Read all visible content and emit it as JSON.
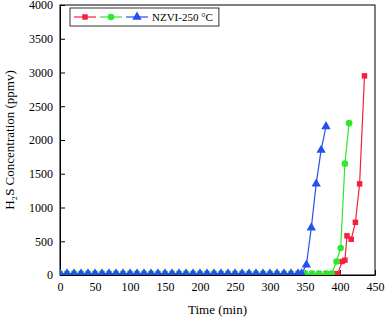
{
  "chart_data": {
    "type": "line",
    "x_label": "Time (min)",
    "y_label": "H₂S Concentration (ppmv)",
    "xlim": [
      0,
      450
    ],
    "xticks": [
      0,
      50,
      100,
      150,
      200,
      250,
      300,
      350,
      400,
      450
    ],
    "ylim": [
      0,
      4000
    ],
    "yticks": [
      0,
      500,
      1000,
      1500,
      2000,
      2500,
      3000,
      3500,
      4000
    ],
    "legend": "upper left",
    "series": [
      {
        "color": "#f5213b",
        "marker": "square",
        "line_style": "solid",
        "x": [
          0,
          10,
          20,
          30,
          40,
          50,
          60,
          70,
          80,
          90,
          100,
          110,
          120,
          130,
          140,
          150,
          160,
          170,
          180,
          190,
          200,
          210,
          220,
          230,
          240,
          250,
          260,
          270,
          280,
          290,
          300,
          310,
          320,
          330,
          340,
          350,
          360,
          370,
          380,
          390,
          397,
          403,
          407,
          410,
          416,
          422,
          428,
          435
        ],
        "values": [
          20,
          20,
          20,
          20,
          20,
          20,
          20,
          20,
          20,
          20,
          20,
          20,
          20,
          20,
          20,
          20,
          20,
          20,
          20,
          20,
          20,
          20,
          20,
          20,
          20,
          20,
          20,
          20,
          20,
          20,
          20,
          20,
          20,
          20,
          20,
          20,
          20,
          20,
          20,
          20,
          20,
          200,
          220,
          580,
          530,
          780,
          1350,
          2950
        ]
      },
      {
        "color": "#2ee82e",
        "marker": "circle",
        "line_style": "solid",
        "x": [
          0,
          10,
          20,
          30,
          40,
          50,
          60,
          70,
          80,
          90,
          100,
          110,
          120,
          130,
          140,
          150,
          160,
          170,
          180,
          190,
          200,
          210,
          220,
          230,
          240,
          250,
          260,
          270,
          280,
          290,
          300,
          310,
          320,
          330,
          340,
          350,
          360,
          370,
          380,
          388,
          395,
          401,
          407,
          413
        ],
        "values": [
          20,
          20,
          20,
          20,
          20,
          20,
          20,
          20,
          20,
          20,
          20,
          20,
          20,
          20,
          20,
          20,
          20,
          20,
          20,
          20,
          20,
          20,
          20,
          20,
          20,
          20,
          20,
          20,
          20,
          20,
          20,
          20,
          20,
          20,
          20,
          20,
          20,
          20,
          20,
          20,
          200,
          400,
          1650,
          2250
        ]
      },
      {
        "name": "NZVI-250 °C",
        "color": "#2450f0",
        "marker": "triangle",
        "line_style": "solid",
        "x": [
          0,
          10,
          20,
          30,
          40,
          50,
          60,
          70,
          80,
          90,
          100,
          110,
          120,
          130,
          140,
          150,
          160,
          170,
          180,
          190,
          200,
          210,
          220,
          230,
          240,
          250,
          260,
          270,
          280,
          290,
          300,
          310,
          320,
          330,
          340,
          345,
          352,
          359,
          366,
          373,
          380
        ],
        "values": [
          20,
          20,
          20,
          20,
          20,
          20,
          20,
          20,
          20,
          20,
          20,
          20,
          20,
          20,
          20,
          20,
          20,
          20,
          20,
          20,
          20,
          20,
          20,
          20,
          20,
          20,
          20,
          20,
          20,
          20,
          20,
          20,
          20,
          20,
          20,
          20,
          150,
          700,
          1350,
          1850,
          2200
        ]
      }
    ]
  }
}
